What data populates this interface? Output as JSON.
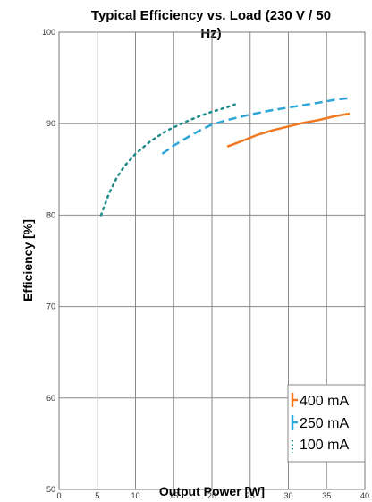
{
  "chart_data": {
    "type": "line",
    "title_line1": "Typical Efficiency vs. Load (230 V / 50",
    "title_line2": "Hz)",
    "xlabel": "Output Power [W]",
    "ylabel": "Efficiency [%]",
    "xlim": [
      0,
      40
    ],
    "ylim": [
      50,
      100
    ],
    "x_ticks": [
      0,
      5,
      10,
      15,
      20,
      25,
      30,
      35,
      40
    ],
    "y_ticks": [
      50,
      60,
      70,
      80,
      90,
      100
    ],
    "grid": true,
    "legend_position": "bottom-right",
    "series": [
      {
        "name": "400 mA",
        "color": "#f07820",
        "dash": "solid",
        "points": [
          [
            22,
            87.5
          ],
          [
            23,
            87.8
          ],
          [
            24.5,
            88.3
          ],
          [
            26,
            88.8
          ],
          [
            28,
            89.3
          ],
          [
            30,
            89.7
          ],
          [
            32,
            90.1
          ],
          [
            34,
            90.4
          ],
          [
            36,
            90.8
          ],
          [
            38,
            91.1
          ]
        ]
      },
      {
        "name": "250 mA",
        "color": "#2ea6d8",
        "dash": "dashed",
        "points": [
          [
            13.5,
            86.7
          ],
          [
            15,
            87.6
          ],
          [
            17,
            88.6
          ],
          [
            18.5,
            89.3
          ],
          [
            20,
            89.9
          ],
          [
            22,
            90.4
          ],
          [
            25,
            91.0
          ],
          [
            28,
            91.5
          ],
          [
            31,
            91.9
          ],
          [
            34,
            92.3
          ],
          [
            36,
            92.6
          ],
          [
            38,
            92.8
          ]
        ]
      },
      {
        "name": "100 mA",
        "color": "#1f8c8c",
        "dash": "dotted",
        "points": [
          [
            5.5,
            80.0
          ],
          [
            6.5,
            82.3
          ],
          [
            7.5,
            84.0
          ],
          [
            8.5,
            85.3
          ],
          [
            10,
            86.7
          ],
          [
            12,
            88.1
          ],
          [
            14,
            89.2
          ],
          [
            16,
            90.0
          ],
          [
            18,
            90.7
          ],
          [
            20,
            91.3
          ],
          [
            22,
            91.8
          ],
          [
            23,
            92.1
          ]
        ]
      }
    ]
  }
}
